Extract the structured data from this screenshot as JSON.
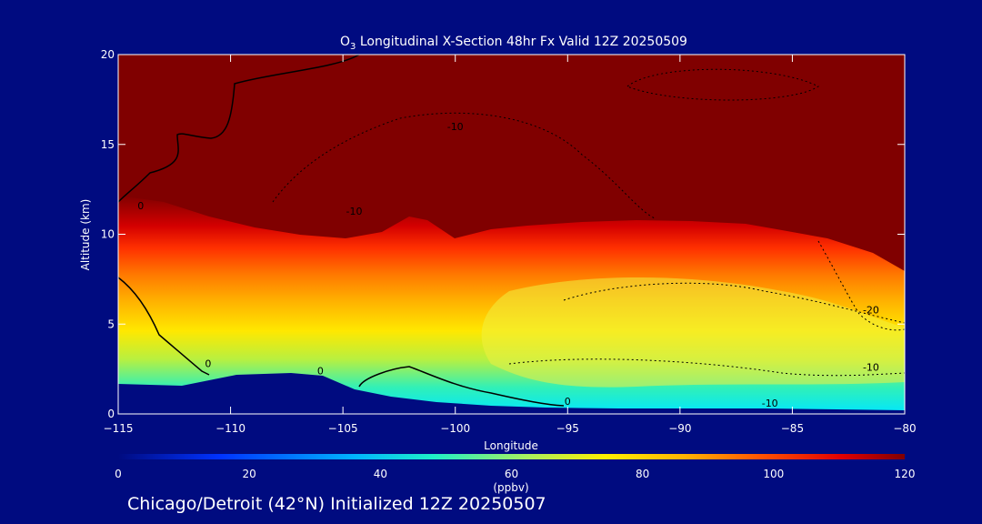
{
  "chart_data": {
    "type": "heatmap",
    "title": "O",
    "title_sub": "3",
    "title_rest": " Longitudinal X-Section 48hr  Fx Valid 12Z 20250509",
    "xlabel": "Longitude",
    "ylabel": "Altitude (km)",
    "xlim": [
      -115,
      -80
    ],
    "ylim": [
      0,
      20
    ],
    "x_ticks": [
      -115,
      -110,
      -105,
      -100,
      -95,
      -90,
      -85,
      -80
    ],
    "x_tick_labels": [
      "−115",
      "−110",
      "−105",
      "−100",
      "−95",
      "−90",
      "−85",
      "−80"
    ],
    "y_ticks": [
      0,
      5,
      10,
      15,
      20
    ],
    "y_tick_labels": [
      "0",
      "5",
      "10",
      "15",
      "20"
    ],
    "colorbar": {
      "range": [
        0,
        120
      ],
      "ticks": [
        0,
        20,
        40,
        60,
        80,
        100,
        120
      ],
      "tick_labels": [
        "0",
        "20",
        "40",
        "60",
        "80",
        "100",
        "120"
      ],
      "unit": "(ppbv)"
    },
    "contour_labels": [
      {
        "text": "-10",
        "x": -100,
        "y": 15.8
      },
      {
        "text": "-10",
        "x": -104.5,
        "y": 11.1
      },
      {
        "text": "0",
        "x": -114,
        "y": 11.4
      },
      {
        "text": "0",
        "x": -111,
        "y": 2.6
      },
      {
        "text": "0",
        "x": -106,
        "y": 2.2
      },
      {
        "text": "0",
        "x": -95,
        "y": 0.5
      },
      {
        "text": "-20",
        "x": -81.5,
        "y": 5.6
      },
      {
        "text": "-10",
        "x": -81.5,
        "y": 2.4
      },
      {
        "text": "-10",
        "x": -86,
        "y": 0.4
      }
    ],
    "grid": false
  },
  "footer": "Chicago/Detroit (42°N) Initialized 12Z 20250507"
}
